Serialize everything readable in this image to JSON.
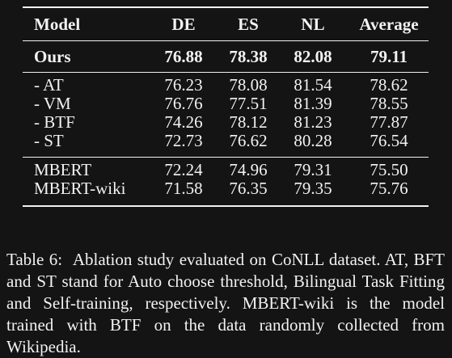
{
  "table": {
    "header": [
      "Model",
      "DE",
      "ES",
      "NL",
      "Average"
    ],
    "rows": [
      [
        "Ours",
        "76.88",
        "78.38",
        "82.08",
        "79.11"
      ],
      [
        "- AT",
        "76.23",
        "78.08",
        "81.54",
        "78.62"
      ],
      [
        "- VM",
        "76.76",
        "77.51",
        "81.39",
        "78.55"
      ],
      [
        "- BTF",
        "74.26",
        "78.12",
        "81.23",
        "77.87"
      ],
      [
        "- ST",
        "72.73",
        "76.62",
        "80.28",
        "76.54"
      ],
      [
        "MBERT",
        "72.24",
        "74.96",
        "79.31",
        "75.50"
      ],
      [
        "MBERT-wiki",
        "71.58",
        "76.35",
        "79.35",
        "75.76"
      ]
    ]
  },
  "caption": {
    "label": "Table 6:",
    "text": "Ablation study evaluated on CoNLL dataset. AT, BFT and ST stand for Auto choose threshold, Bilingual Task Fitting and Self-training, respectively. MBERT-wiki is the model trained with BTF on the data randomly collected from Wikipedia."
  }
}
